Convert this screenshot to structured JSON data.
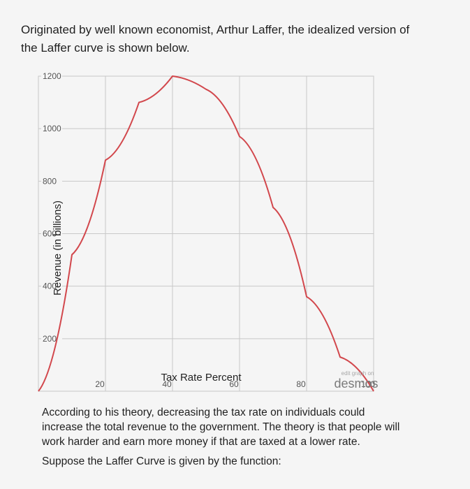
{
  "intro_text": "Originated by well known economist, Arthur Laffer, the idealized version of the Laffer curve is shown below.",
  "colors": {
    "curve": "#d2474c",
    "grid": "#c8c8c8",
    "axis_text": "#555555"
  },
  "chart_data": {
    "type": "line",
    "title": "",
    "xlabel": "Tax Rate Percent",
    "ylabel": "Revenue (in billions)",
    "xlim": [
      0,
      100
    ],
    "ylim": [
      0,
      1200
    ],
    "x_ticks": [
      "20",
      "40",
      "60",
      "80",
      "100"
    ],
    "y_ticks": [
      "200",
      "400",
      "600",
      "800",
      "1000",
      "1200"
    ],
    "grid": true,
    "series": [
      {
        "name": "",
        "x": [
          0,
          10,
          20,
          30,
          40,
          50,
          60,
          70,
          80,
          90,
          100
        ],
        "y": [
          0,
          520,
          880,
          1100,
          1200,
          1150,
          970,
          700,
          360,
          130,
          0
        ]
      }
    ]
  },
  "desmos": {
    "edit_link": "edit graph on",
    "logo": "desmos"
  },
  "outro": {
    "paragraph1": "According to his theory, decreasing the tax rate on individuals could increase the total revenue to the government. The theory is that people will work harder and earn more money if that are taxed at a lower rate.",
    "paragraph2": "Suppose the Laffer Curve is given by the function:"
  }
}
